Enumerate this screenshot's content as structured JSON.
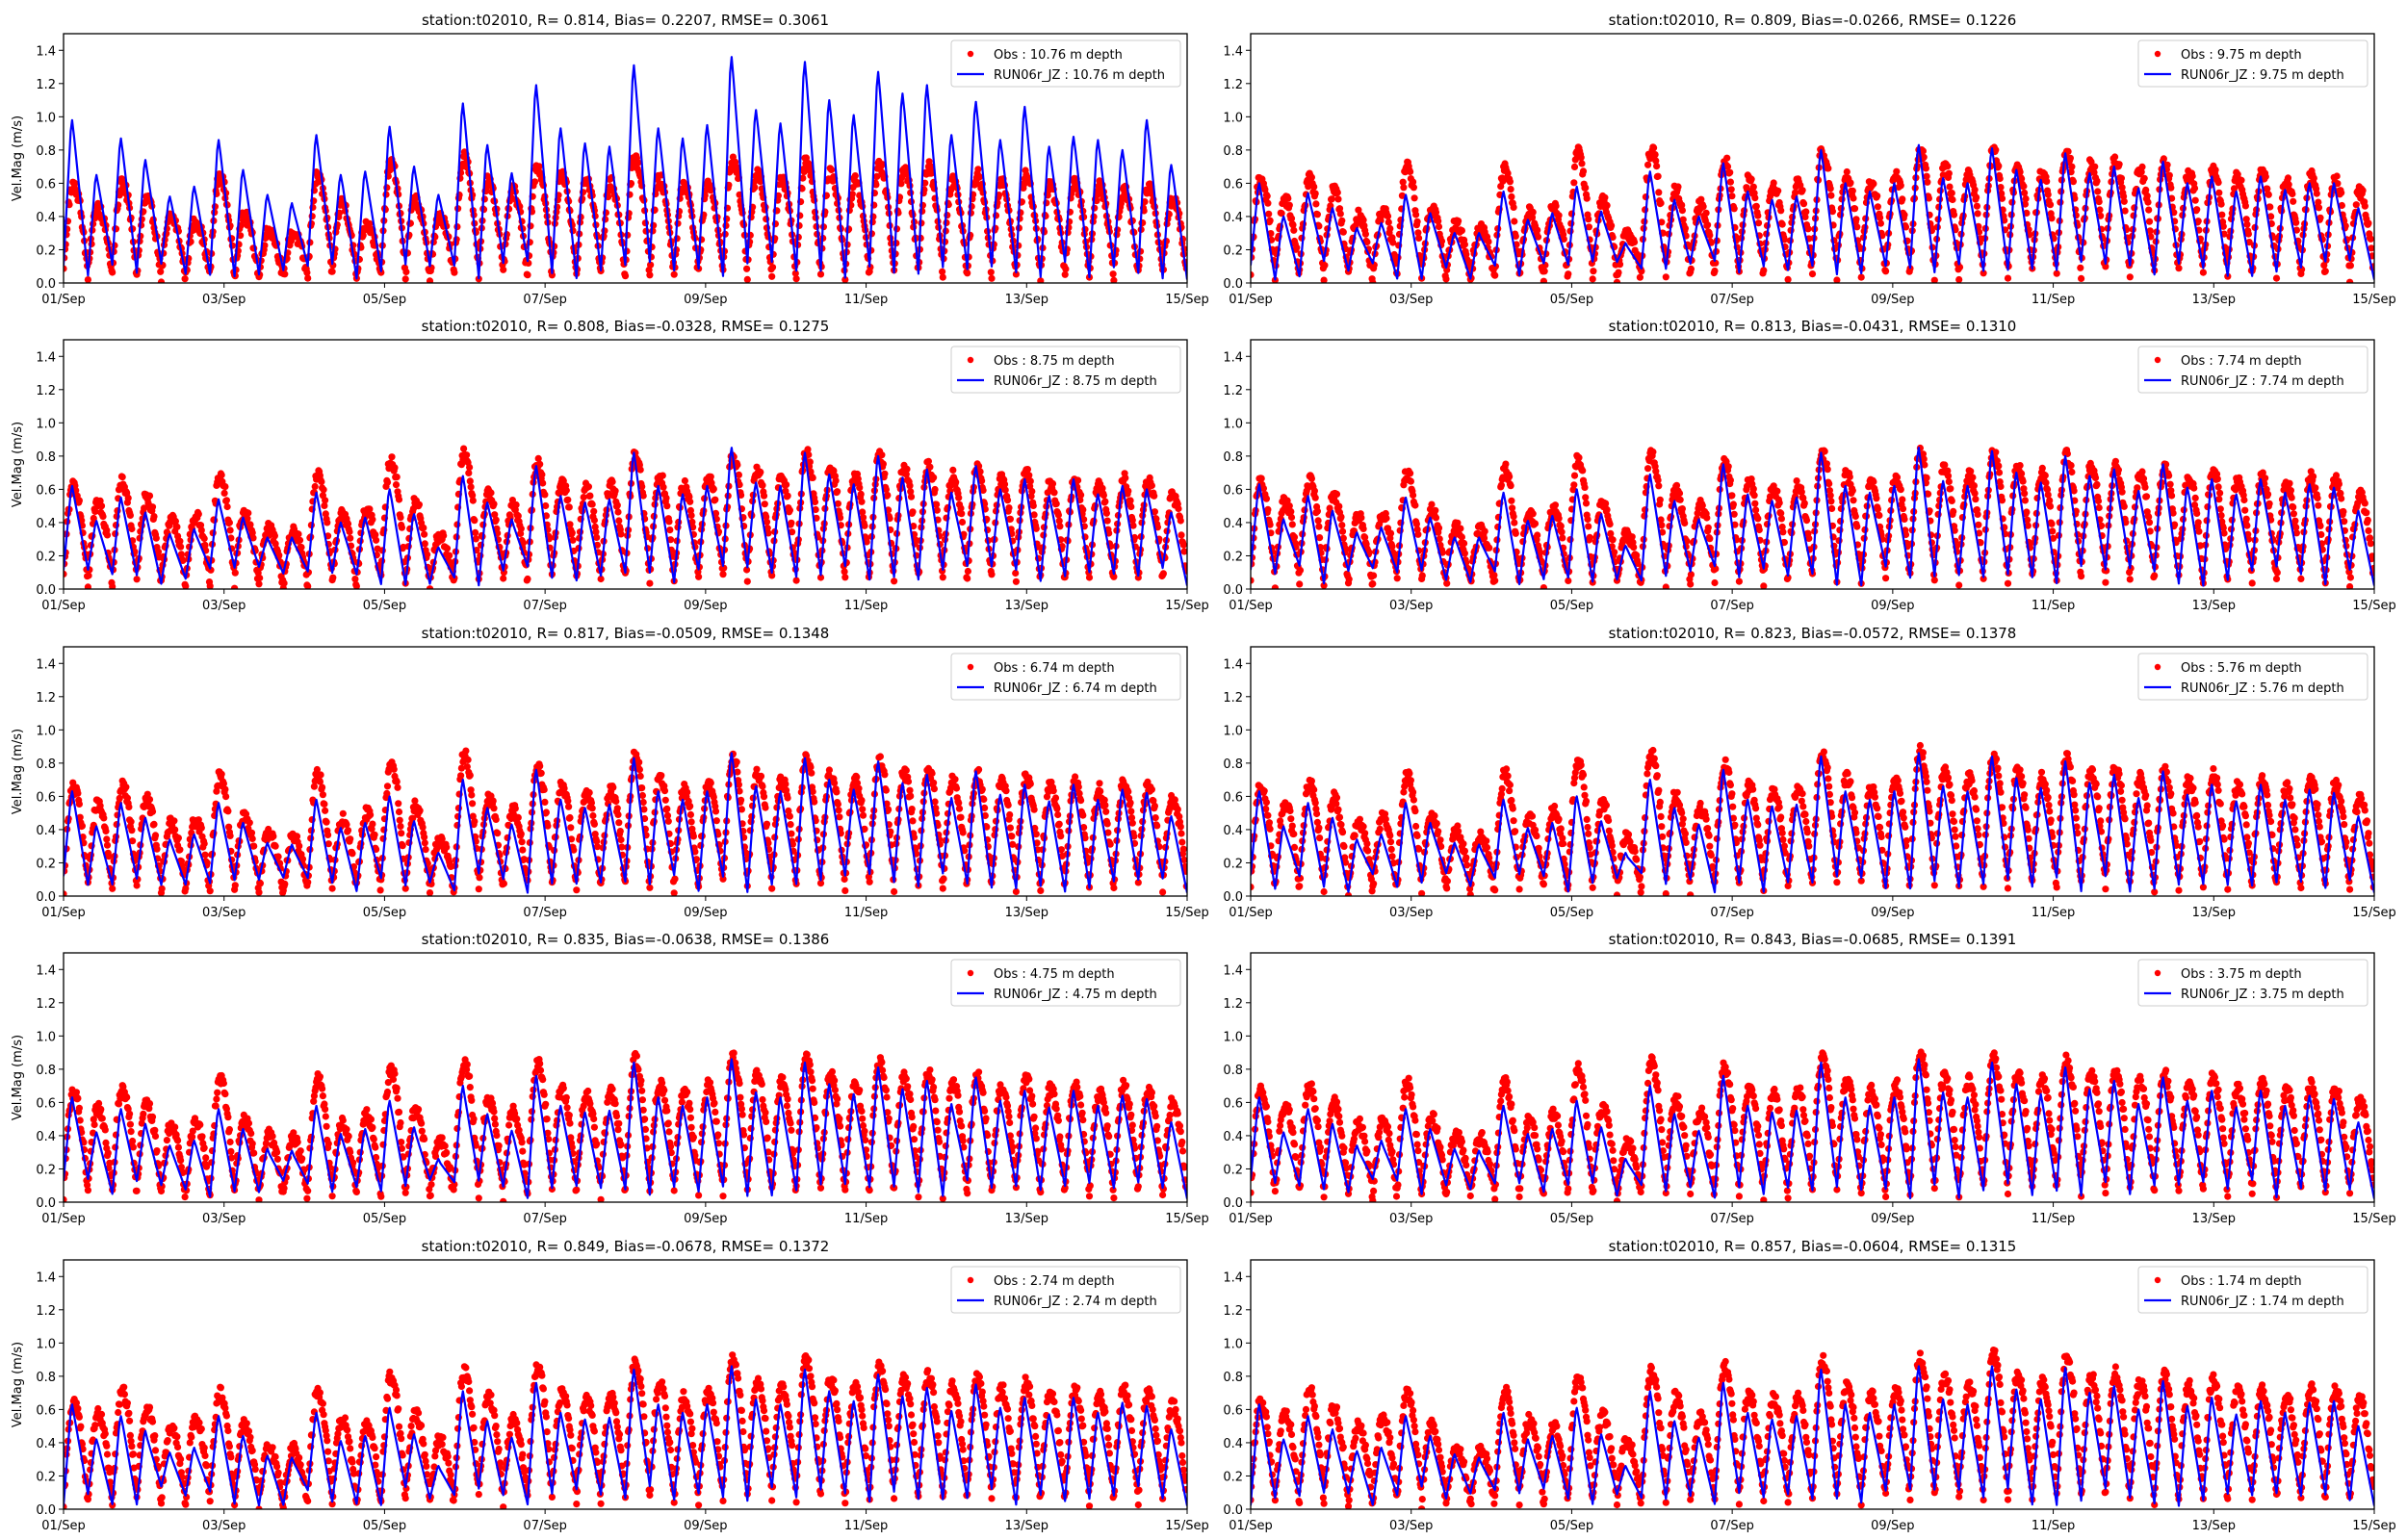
{
  "figure": {
    "layout": "5 rows x 2 columns",
    "shared": {
      "ylabel": "Vel.Mag (m/s)",
      "ylim": [
        0.0,
        1.5
      ],
      "yticks": [
        "0.0",
        "0.2",
        "0.4",
        "0.6",
        "0.8",
        "1.0",
        "1.2",
        "1.4"
      ],
      "xticks": [
        "01/Sep",
        "03/Sep",
        "05/Sep",
        "07/Sep",
        "09/Sep",
        "11/Sep",
        "13/Sep",
        "15/Sep"
      ],
      "xrange_days": [
        0,
        14
      ],
      "legend_position": "upper-right"
    },
    "colors": {
      "obs": "#ff0000",
      "model": "#0000ff",
      "axis": "#000000",
      "legend_border": "#cccccc"
    }
  },
  "chart_data": [
    {
      "type": "line",
      "title": "station:t02010, R= 0.814, Bias= 0.2207, RMSE= 0.3061",
      "depth": "10.76",
      "xlabel": "",
      "ylabel": "Vel.Mag (m/s)",
      "ylim": [
        0,
        1.5
      ],
      "series": [
        {
          "name": "Obs : 10.76 m depth",
          "kind": "scatter",
          "approx_peak": 0.75,
          "approx_mean": 0.33
        },
        {
          "name": "RUN06r_JZ : 10.76 m depth",
          "kind": "line",
          "approx_peak": 1.36,
          "approx_mean": 0.55
        }
      ],
      "model_peaks": [
        0.98,
        0.65,
        0.87,
        0.74,
        0.52,
        0.58,
        0.86,
        0.68,
        0.53,
        0.48,
        0.89,
        0.65,
        0.67,
        0.94,
        0.7,
        0.53,
        1.08,
        0.83,
        0.66,
        1.19,
        0.93,
        0.84,
        0.82,
        1.31,
        0.93,
        0.87,
        0.95,
        1.36,
        1.04,
        0.96,
        1.33,
        1.1,
        1.01,
        1.27,
        1.14,
        1.19,
        0.89,
        1.09,
        0.86,
        1.06,
        0.82,
        0.88,
        0.86,
        0.8,
        0.98,
        0.71
      ],
      "obs_peaks": [
        0.6,
        0.46,
        0.6,
        0.5,
        0.4,
        0.37,
        0.64,
        0.4,
        0.32,
        0.3,
        0.64,
        0.48,
        0.36,
        0.72,
        0.5,
        0.4,
        0.76,
        0.62,
        0.55,
        0.7,
        0.65,
        0.62,
        0.6,
        0.75,
        0.62,
        0.6,
        0.6,
        0.73,
        0.65,
        0.62,
        0.74,
        0.66,
        0.62,
        0.72,
        0.68,
        0.7,
        0.62,
        0.66,
        0.6,
        0.64,
        0.58,
        0.6,
        0.58,
        0.56,
        0.58,
        0.5
      ]
    },
    {
      "type": "line",
      "title": "station:t02010, R= 0.809, Bias=-0.0266, RMSE= 0.1226",
      "depth": "9.75",
      "xlabel": "",
      "ylabel": "",
      "ylim": [
        0,
        1.5
      ],
      "series": [
        {
          "name": "Obs : 9.75 m depth",
          "kind": "scatter"
        },
        {
          "name": "RUN06r_JZ : 9.75 m depth",
          "kind": "line"
        }
      ],
      "model_peaks": [
        0.6,
        0.4,
        0.54,
        0.45,
        0.33,
        0.36,
        0.53,
        0.42,
        0.3,
        0.3,
        0.55,
        0.38,
        0.42,
        0.58,
        0.43,
        0.24,
        0.67,
        0.5,
        0.4,
        0.72,
        0.55,
        0.5,
        0.52,
        0.8,
        0.6,
        0.55,
        0.6,
        0.83,
        0.63,
        0.6,
        0.81,
        0.68,
        0.62,
        0.78,
        0.66,
        0.7,
        0.57,
        0.73,
        0.6,
        0.64,
        0.55,
        0.64,
        0.56,
        0.6,
        0.6,
        0.45
      ],
      "obs_peaks": [
        0.63,
        0.5,
        0.62,
        0.55,
        0.4,
        0.43,
        0.7,
        0.45,
        0.35,
        0.32,
        0.68,
        0.42,
        0.46,
        0.78,
        0.5,
        0.3,
        0.8,
        0.56,
        0.48,
        0.74,
        0.62,
        0.58,
        0.6,
        0.8,
        0.66,
        0.6,
        0.64,
        0.8,
        0.7,
        0.66,
        0.8,
        0.7,
        0.66,
        0.78,
        0.72,
        0.74,
        0.68,
        0.72,
        0.66,
        0.68,
        0.64,
        0.66,
        0.62,
        0.64,
        0.62,
        0.55
      ]
    },
    {
      "type": "line",
      "title": "station:t02010, R= 0.808, Bias=-0.0328, RMSE= 0.1275",
      "depth": "8.75",
      "xlabel": "",
      "ylabel": "Vel.Mag (m/s)",
      "ylim": [
        0,
        1.5
      ],
      "series": [
        {
          "name": "Obs : 8.75 m depth",
          "kind": "scatter"
        },
        {
          "name": "RUN06r_JZ : 8.75 m depth",
          "kind": "line"
        }
      ],
      "model_peaks": [
        0.62,
        0.41,
        0.55,
        0.46,
        0.33,
        0.36,
        0.54,
        0.43,
        0.31,
        0.31,
        0.58,
        0.4,
        0.43,
        0.6,
        0.45,
        0.25,
        0.68,
        0.52,
        0.42,
        0.74,
        0.56,
        0.52,
        0.54,
        0.82,
        0.62,
        0.57,
        0.62,
        0.85,
        0.64,
        0.62,
        0.82,
        0.69,
        0.63,
        0.8,
        0.67,
        0.72,
        0.58,
        0.74,
        0.6,
        0.66,
        0.56,
        0.66,
        0.57,
        0.62,
        0.6,
        0.46
      ],
      "obs_peaks": [
        0.63,
        0.52,
        0.64,
        0.56,
        0.42,
        0.44,
        0.68,
        0.46,
        0.36,
        0.34,
        0.7,
        0.44,
        0.48,
        0.78,
        0.52,
        0.32,
        0.82,
        0.58,
        0.5,
        0.76,
        0.64,
        0.6,
        0.62,
        0.8,
        0.68,
        0.62,
        0.66,
        0.8,
        0.72,
        0.68,
        0.82,
        0.72,
        0.68,
        0.8,
        0.72,
        0.74,
        0.68,
        0.72,
        0.66,
        0.7,
        0.64,
        0.66,
        0.62,
        0.66,
        0.64,
        0.56
      ]
    },
    {
      "type": "line",
      "title": "station:t02010, R= 0.813, Bias=-0.0431, RMSE= 0.1310",
      "depth": "7.74",
      "xlabel": "",
      "ylabel": "",
      "ylim": [
        0,
        1.5
      ],
      "series": [
        {
          "name": "Obs : 7.74 m depth",
          "kind": "scatter"
        },
        {
          "name": "RUN06r_JZ : 7.74 m depth",
          "kind": "line"
        }
      ],
      "model_peaks": [
        0.63,
        0.42,
        0.56,
        0.47,
        0.34,
        0.37,
        0.55,
        0.43,
        0.31,
        0.31,
        0.58,
        0.41,
        0.44,
        0.6,
        0.45,
        0.26,
        0.69,
        0.53,
        0.42,
        0.75,
        0.57,
        0.53,
        0.55,
        0.82,
        0.62,
        0.58,
        0.62,
        0.85,
        0.65,
        0.62,
        0.83,
        0.7,
        0.64,
        0.8,
        0.68,
        0.72,
        0.59,
        0.75,
        0.61,
        0.66,
        0.57,
        0.66,
        0.58,
        0.63,
        0.61,
        0.47
      ],
      "obs_peaks": [
        0.64,
        0.53,
        0.65,
        0.57,
        0.43,
        0.45,
        0.7,
        0.47,
        0.37,
        0.35,
        0.72,
        0.45,
        0.49,
        0.78,
        0.53,
        0.33,
        0.82,
        0.59,
        0.51,
        0.77,
        0.65,
        0.61,
        0.63,
        0.82,
        0.69,
        0.63,
        0.67,
        0.82,
        0.73,
        0.69,
        0.82,
        0.73,
        0.69,
        0.8,
        0.73,
        0.75,
        0.69,
        0.73,
        0.67,
        0.71,
        0.65,
        0.67,
        0.63,
        0.67,
        0.65,
        0.57
      ]
    },
    {
      "type": "line",
      "title": "station:t02010, R= 0.817, Bias=-0.0509, RMSE= 0.1348",
      "depth": "6.74",
      "xlabel": "",
      "ylabel": "Vel.Mag (m/s)",
      "ylim": [
        0,
        1.5
      ],
      "series": [
        {
          "name": "Obs : 6.74 m depth",
          "kind": "scatter"
        },
        {
          "name": "RUN06r_JZ : 6.74 m depth",
          "kind": "line"
        }
      ],
      "model_peaks": [
        0.63,
        0.42,
        0.56,
        0.47,
        0.34,
        0.37,
        0.56,
        0.44,
        0.32,
        0.31,
        0.58,
        0.41,
        0.44,
        0.6,
        0.45,
        0.26,
        0.7,
        0.53,
        0.43,
        0.76,
        0.58,
        0.53,
        0.55,
        0.83,
        0.63,
        0.58,
        0.63,
        0.86,
        0.66,
        0.63,
        0.83,
        0.7,
        0.64,
        0.81,
        0.68,
        0.73,
        0.59,
        0.75,
        0.61,
        0.67,
        0.57,
        0.67,
        0.58,
        0.64,
        0.62,
        0.48
      ],
      "obs_peaks": [
        0.65,
        0.55,
        0.67,
        0.58,
        0.44,
        0.46,
        0.72,
        0.48,
        0.38,
        0.36,
        0.73,
        0.46,
        0.5,
        0.8,
        0.54,
        0.34,
        0.85,
        0.6,
        0.52,
        0.79,
        0.66,
        0.62,
        0.64,
        0.84,
        0.7,
        0.64,
        0.68,
        0.84,
        0.74,
        0.7,
        0.83,
        0.74,
        0.7,
        0.82,
        0.74,
        0.76,
        0.7,
        0.74,
        0.68,
        0.72,
        0.66,
        0.68,
        0.64,
        0.68,
        0.66,
        0.58
      ]
    },
    {
      "type": "line",
      "title": "station:t02010, R= 0.823, Bias=-0.0572, RMSE= 0.1378",
      "depth": "5.76",
      "xlabel": "",
      "ylabel": "",
      "ylim": [
        0,
        1.5
      ],
      "series": [
        {
          "name": "Obs : 5.76 m depth",
          "kind": "scatter"
        },
        {
          "name": "RUN06r_JZ : 5.76 m depth",
          "kind": "line"
        }
      ],
      "model_peaks": [
        0.63,
        0.42,
        0.56,
        0.47,
        0.34,
        0.37,
        0.56,
        0.44,
        0.32,
        0.31,
        0.58,
        0.41,
        0.44,
        0.6,
        0.45,
        0.26,
        0.7,
        0.53,
        0.43,
        0.76,
        0.58,
        0.54,
        0.55,
        0.84,
        0.63,
        0.58,
        0.63,
        0.86,
        0.66,
        0.63,
        0.84,
        0.71,
        0.65,
        0.81,
        0.68,
        0.73,
        0.59,
        0.75,
        0.61,
        0.67,
        0.57,
        0.67,
        0.58,
        0.64,
        0.62,
        0.48
      ],
      "obs_peaks": [
        0.66,
        0.56,
        0.68,
        0.59,
        0.45,
        0.47,
        0.73,
        0.49,
        0.39,
        0.37,
        0.74,
        0.47,
        0.51,
        0.81,
        0.55,
        0.35,
        0.86,
        0.61,
        0.53,
        0.8,
        0.67,
        0.63,
        0.65,
        0.86,
        0.71,
        0.65,
        0.69,
        0.87,
        0.75,
        0.71,
        0.84,
        0.75,
        0.71,
        0.83,
        0.75,
        0.77,
        0.71,
        0.75,
        0.69,
        0.73,
        0.67,
        0.69,
        0.65,
        0.69,
        0.67,
        0.59
      ]
    },
    {
      "type": "line",
      "title": "station:t02010, R= 0.835, Bias=-0.0638, RMSE= 0.1386",
      "depth": "4.75",
      "xlabel": "",
      "ylabel": "Vel.Mag (m/s)",
      "ylim": [
        0,
        1.5
      ],
      "series": [
        {
          "name": "Obs : 4.75 m depth",
          "kind": "scatter"
        },
        {
          "name": "RUN06r_JZ : 4.75 m depth",
          "kind": "line"
        }
      ],
      "model_peaks": [
        0.63,
        0.42,
        0.56,
        0.47,
        0.34,
        0.37,
        0.56,
        0.44,
        0.32,
        0.31,
        0.58,
        0.41,
        0.44,
        0.61,
        0.45,
        0.26,
        0.7,
        0.53,
        0.43,
        0.76,
        0.58,
        0.54,
        0.55,
        0.84,
        0.63,
        0.58,
        0.63,
        0.86,
        0.66,
        0.63,
        0.84,
        0.71,
        0.65,
        0.81,
        0.68,
        0.73,
        0.59,
        0.75,
        0.61,
        0.67,
        0.57,
        0.67,
        0.58,
        0.64,
        0.62,
        0.48
      ],
      "obs_peaks": [
        0.66,
        0.57,
        0.69,
        0.59,
        0.46,
        0.48,
        0.74,
        0.5,
        0.4,
        0.38,
        0.74,
        0.48,
        0.52,
        0.8,
        0.56,
        0.36,
        0.84,
        0.62,
        0.54,
        0.84,
        0.68,
        0.64,
        0.66,
        0.86,
        0.72,
        0.66,
        0.7,
        0.88,
        0.76,
        0.72,
        0.86,
        0.76,
        0.72,
        0.84,
        0.76,
        0.78,
        0.72,
        0.76,
        0.7,
        0.74,
        0.68,
        0.7,
        0.66,
        0.7,
        0.68,
        0.6
      ]
    },
    {
      "type": "line",
      "title": "station:t02010, R= 0.843, Bias=-0.0685, RMSE= 0.1391",
      "depth": "3.75",
      "xlabel": "",
      "ylabel": "",
      "ylim": [
        0,
        1.5
      ],
      "series": [
        {
          "name": "Obs : 3.75 m depth",
          "kind": "scatter"
        },
        {
          "name": "RUN06r_JZ : 3.75 m depth",
          "kind": "line"
        }
      ],
      "model_peaks": [
        0.63,
        0.42,
        0.56,
        0.47,
        0.34,
        0.37,
        0.56,
        0.44,
        0.32,
        0.31,
        0.58,
        0.41,
        0.44,
        0.61,
        0.45,
        0.26,
        0.7,
        0.53,
        0.43,
        0.76,
        0.58,
        0.54,
        0.55,
        0.84,
        0.63,
        0.58,
        0.63,
        0.86,
        0.66,
        0.63,
        0.84,
        0.71,
        0.65,
        0.81,
        0.68,
        0.73,
        0.59,
        0.75,
        0.61,
        0.67,
        0.57,
        0.67,
        0.58,
        0.64,
        0.62,
        0.48
      ],
      "obs_peaks": [
        0.67,
        0.58,
        0.7,
        0.6,
        0.47,
        0.49,
        0.72,
        0.51,
        0.41,
        0.39,
        0.72,
        0.49,
        0.53,
        0.8,
        0.57,
        0.37,
        0.84,
        0.63,
        0.55,
        0.82,
        0.69,
        0.65,
        0.67,
        0.88,
        0.73,
        0.67,
        0.71,
        0.9,
        0.77,
        0.73,
        0.88,
        0.77,
        0.73,
        0.85,
        0.77,
        0.79,
        0.73,
        0.77,
        0.71,
        0.75,
        0.69,
        0.71,
        0.67,
        0.71,
        0.69,
        0.61
      ]
    },
    {
      "type": "line",
      "title": "station:t02010, R= 0.849, Bias=-0.0678, RMSE= 0.1372",
      "depth": "2.74",
      "xlabel": "",
      "ylabel": "Vel.Mag (m/s)",
      "ylim": [
        0,
        1.5
      ],
      "series": [
        {
          "name": "Obs : 2.74 m depth",
          "kind": "scatter"
        },
        {
          "name": "RUN06r_JZ : 2.74 m depth",
          "kind": "line"
        }
      ],
      "model_peaks": [
        0.63,
        0.42,
        0.56,
        0.47,
        0.34,
        0.37,
        0.56,
        0.44,
        0.32,
        0.31,
        0.58,
        0.41,
        0.44,
        0.61,
        0.45,
        0.26,
        0.71,
        0.53,
        0.43,
        0.76,
        0.58,
        0.54,
        0.55,
        0.84,
        0.63,
        0.58,
        0.63,
        0.86,
        0.66,
        0.63,
        0.84,
        0.71,
        0.65,
        0.81,
        0.68,
        0.73,
        0.59,
        0.75,
        0.61,
        0.67,
        0.57,
        0.67,
        0.58,
        0.64,
        0.62,
        0.48
      ],
      "obs_peaks": [
        0.64,
        0.58,
        0.72,
        0.61,
        0.5,
        0.55,
        0.7,
        0.51,
        0.37,
        0.36,
        0.71,
        0.54,
        0.5,
        0.8,
        0.57,
        0.42,
        0.83,
        0.68,
        0.55,
        0.86,
        0.7,
        0.66,
        0.68,
        0.89,
        0.75,
        0.68,
        0.72,
        0.91,
        0.78,
        0.74,
        0.9,
        0.78,
        0.74,
        0.87,
        0.78,
        0.8,
        0.74,
        0.78,
        0.72,
        0.76,
        0.7,
        0.72,
        0.68,
        0.72,
        0.7,
        0.62
      ]
    },
    {
      "type": "line",
      "title": "station:t02010, R= 0.857, Bias=-0.0604, RMSE= 0.1315",
      "depth": "1.74",
      "xlabel": "",
      "ylabel": "",
      "ylim": [
        0,
        1.5
      ],
      "series": [
        {
          "name": "Obs : 1.74 m depth",
          "kind": "scatter"
        },
        {
          "name": "RUN06r_JZ : 1.74 m depth",
          "kind": "line"
        }
      ],
      "model_peaks": [
        0.63,
        0.42,
        0.56,
        0.48,
        0.35,
        0.37,
        0.56,
        0.44,
        0.33,
        0.31,
        0.58,
        0.42,
        0.44,
        0.61,
        0.45,
        0.26,
        0.71,
        0.53,
        0.43,
        0.76,
        0.58,
        0.54,
        0.56,
        0.84,
        0.63,
        0.58,
        0.63,
        0.86,
        0.66,
        0.63,
        0.86,
        0.72,
        0.66,
        0.85,
        0.7,
        0.74,
        0.6,
        0.77,
        0.62,
        0.67,
        0.57,
        0.65,
        0.58,
        0.64,
        0.65,
        0.5
      ],
      "obs_peaks": [
        0.64,
        0.58,
        0.72,
        0.61,
        0.5,
        0.55,
        0.7,
        0.51,
        0.37,
        0.36,
        0.71,
        0.54,
        0.5,
        0.8,
        0.57,
        0.42,
        0.83,
        0.68,
        0.55,
        0.86,
        0.7,
        0.66,
        0.68,
        0.89,
        0.75,
        0.68,
        0.72,
        0.91,
        0.8,
        0.76,
        0.94,
        0.8,
        0.76,
        0.92,
        0.8,
        0.82,
        0.76,
        0.8,
        0.74,
        0.78,
        0.72,
        0.72,
        0.68,
        0.72,
        0.72,
        0.66
      ]
    }
  ]
}
